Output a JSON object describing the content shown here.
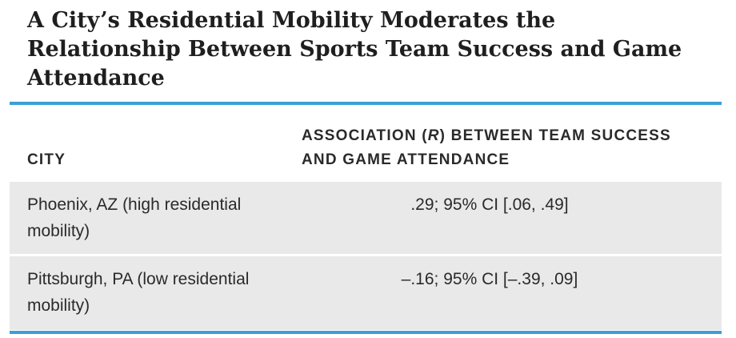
{
  "title": "A City’s Residential Mobility Moderates the Relationship Between Sports Team Success and Game Attendance",
  "table": {
    "headers": {
      "city": "CITY",
      "association_prefix": "ASSOCIATION (",
      "association_r": "r",
      "association_suffix": ") BETWEEN TEAM SUCCESS AND GAME ATTENDANCE"
    },
    "rows": [
      {
        "city": "Phoenix, AZ (high residential mobility)",
        "association": ".29; 95% CI [.06, .49]"
      },
      {
        "city": "Pittsburgh, PA (low residential mobility)",
        "association": "–.16; 95% CI [–.39, .09]"
      }
    ]
  },
  "colors": {
    "rule": "#3b9fd6",
    "row_background": "#e9e9ea",
    "text": "#222222"
  }
}
